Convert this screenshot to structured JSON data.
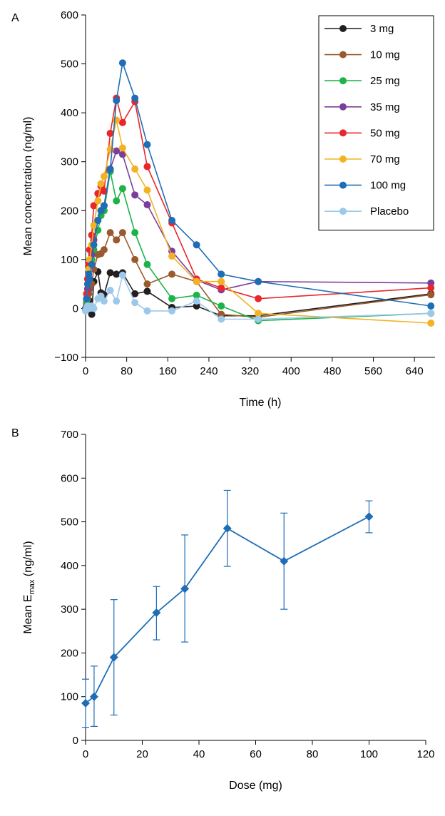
{
  "chart_data": [
    {
      "panel_label": "A",
      "type": "line",
      "xlabel": "Time (h)",
      "ylabel": "Mean concentration (ng/ml)",
      "xlim": [
        0,
        680
      ],
      "ylim": [
        -100,
        600
      ],
      "x_ticks": [
        0,
        80,
        160,
        240,
        320,
        400,
        480,
        560,
        640
      ],
      "y_ticks": [
        -100,
        0,
        100,
        200,
        300,
        400,
        500,
        600
      ],
      "y_tick_labels": [
        "−100",
        "0",
        "100",
        "200",
        "300",
        "400",
        "500",
        "600"
      ],
      "legend_position": "top-right",
      "series": [
        {
          "name": "3 mg",
          "color": "#231f20",
          "x": [
            0,
            2,
            4,
            6,
            8,
            12,
            16,
            24,
            30,
            36,
            48,
            60,
            72,
            96,
            120,
            168,
            216,
            264,
            336,
            672
          ],
          "y": [
            -2,
            5,
            10,
            12,
            15,
            -12,
            55,
            75,
            32,
            28,
            73,
            70,
            73,
            30,
            35,
            2,
            5,
            -15,
            -15,
            30
          ]
        },
        {
          "name": "10 mg",
          "color": "#9a5a2d",
          "x": [
            0,
            2,
            4,
            6,
            8,
            12,
            16,
            24,
            30,
            36,
            48,
            60,
            72,
            96,
            120,
            168,
            216,
            264,
            336,
            672
          ],
          "y": [
            0,
            10,
            20,
            30,
            40,
            50,
            80,
            110,
            112,
            120,
            155,
            140,
            155,
            100,
            50,
            70,
            55,
            -12,
            -18,
            28
          ]
        },
        {
          "name": "25 mg",
          "color": "#1cb34a",
          "x": [
            0,
            2,
            4,
            6,
            8,
            12,
            16,
            24,
            30,
            36,
            48,
            60,
            72,
            96,
            120,
            168,
            216,
            264,
            336,
            672
          ],
          "y": [
            0,
            15,
            40,
            60,
            80,
            100,
            120,
            160,
            190,
            200,
            280,
            220,
            245,
            155,
            90,
            20,
            27,
            5,
            -25,
            -10
          ]
        },
        {
          "name": "35 mg",
          "color": "#7b3f9b",
          "x": [
            0,
            2,
            4,
            6,
            8,
            12,
            16,
            24,
            30,
            36,
            48,
            60,
            72,
            96,
            120,
            168,
            216,
            264,
            336,
            672
          ],
          "y": [
            0,
            20,
            40,
            60,
            80,
            110,
            140,
            180,
            200,
            210,
            285,
            322,
            315,
            232,
            212,
            117,
            58,
            38,
            55,
            52
          ]
        },
        {
          "name": "50 mg",
          "color": "#e8262b",
          "x": [
            0,
            2,
            4,
            6,
            8,
            12,
            16,
            24,
            30,
            36,
            48,
            60,
            72,
            96,
            120,
            168,
            216,
            264,
            336,
            672
          ],
          "y": [
            0,
            30,
            60,
            90,
            120,
            150,
            210,
            235,
            250,
            240,
            358,
            430,
            380,
            423,
            290,
            175,
            60,
            42,
            20,
            42
          ]
        },
        {
          "name": "70 mg",
          "color": "#f2b223",
          "x": [
            0,
            2,
            4,
            6,
            8,
            12,
            16,
            24,
            30,
            36,
            48,
            60,
            72,
            96,
            120,
            168,
            216,
            264,
            336,
            672
          ],
          "y": [
            0,
            20,
            50,
            80,
            100,
            130,
            170,
            220,
            255,
            270,
            325,
            385,
            328,
            285,
            242,
            107,
            55,
            55,
            -10,
            -30
          ]
        },
        {
          "name": "100 mg",
          "color": "#1f6db5",
          "x": [
            0,
            2,
            4,
            6,
            8,
            12,
            16,
            24,
            30,
            36,
            48,
            60,
            72,
            96,
            120,
            168,
            216,
            264,
            336,
            672
          ],
          "y": [
            0,
            20,
            50,
            70,
            60,
            90,
            130,
            180,
            200,
            210,
            285,
            425,
            502,
            430,
            335,
            180,
            130,
            70,
            55,
            5
          ]
        },
        {
          "name": "Placebo",
          "color": "#9cc9ea",
          "x": [
            0,
            2,
            4,
            6,
            8,
            12,
            16,
            24,
            30,
            36,
            48,
            60,
            72,
            96,
            120,
            168,
            216,
            264,
            336,
            672
          ],
          "y": [
            -5,
            0,
            5,
            3,
            0,
            5,
            0,
            20,
            25,
            15,
            37,
            15,
            68,
            12,
            -5,
            -5,
            15,
            -22,
            -22,
            -10
          ]
        }
      ]
    },
    {
      "panel_label": "B",
      "type": "line",
      "xlabel": "Dose (mg)",
      "ylabel_main": "Mean E",
      "ylabel_sub": "max",
      "ylabel_unit": " (ng/ml)",
      "xlim": [
        0,
        120
      ],
      "ylim": [
        0,
        700
      ],
      "x_ticks": [
        0,
        20,
        40,
        60,
        80,
        100,
        120
      ],
      "y_ticks": [
        0,
        100,
        200,
        300,
        400,
        500,
        600,
        700
      ],
      "color": "#1f6db5",
      "series": [
        {
          "x": [
            0,
            3,
            10,
            25,
            35,
            50,
            70,
            100
          ],
          "y": [
            85,
            100,
            190,
            292,
            347,
            485,
            410,
            512
          ],
          "err_low": [
            30,
            32,
            58,
            230,
            225,
            398,
            300,
            475
          ],
          "err_high": [
            140,
            170,
            322,
            352,
            470,
            572,
            520,
            548
          ]
        }
      ]
    }
  ]
}
